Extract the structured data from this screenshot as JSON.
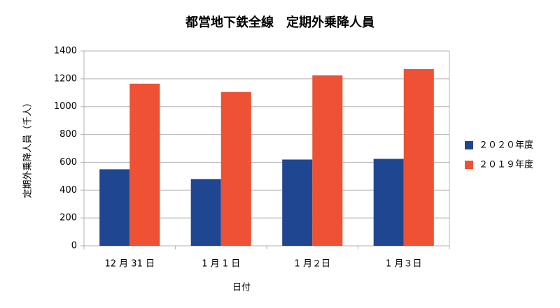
{
  "chart_data": {
    "type": "bar",
    "title": "都営地下鉄全線　定期外乗降人員",
    "x_label": "日付",
    "y_label": "定期外乗降人員（千人）",
    "categories": [
      "12 月 31 日",
      "1 月 1 日",
      "1 月２日",
      "1 月３日"
    ],
    "series": [
      {
        "name": "２０２０年度",
        "color": "#1f4690",
        "values": [
          550,
          480,
          620,
          625
        ]
      },
      {
        "name": "２０１９年度",
        "color": "#ee5133",
        "values": [
          1165,
          1105,
          1225,
          1270
        ]
      }
    ],
    "ylim": [
      0,
      1400
    ],
    "yticks": [
      0,
      200,
      400,
      600,
      800,
      1000,
      1200,
      1400
    ],
    "grid": true,
    "legend": "right"
  }
}
